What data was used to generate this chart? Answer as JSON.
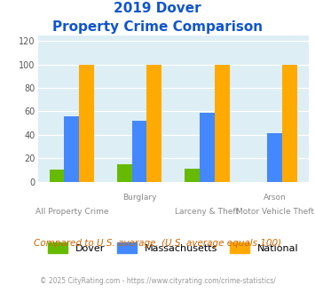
{
  "title_line1": "2019 Dover",
  "title_line2": "Property Crime Comparison",
  "category_labels_row1": [
    "",
    "Burglary",
    "",
    "Arson"
  ],
  "category_labels_row2": [
    "All Property Crime",
    "",
    "Larceny & Theft",
    "Motor Vehicle Theft"
  ],
  "groups": [
    "Dover",
    "Massachusetts",
    "National"
  ],
  "values": {
    "Dover": [
      10,
      15,
      11,
      0
    ],
    "Massachusetts": [
      56,
      52,
      59,
      41
    ],
    "National": [
      100,
      100,
      100,
      100
    ]
  },
  "colors": {
    "Dover": "#66bb00",
    "Massachusetts": "#4488ff",
    "National": "#ffaa00"
  },
  "title_color": "#1155cc",
  "bg_color": "#ddeef5",
  "ylabel_vals": [
    0,
    20,
    40,
    60,
    80,
    100,
    120
  ],
  "ylim": [
    0,
    125
  ],
  "footnote": "Compared to U.S. average. (U.S. average equals 100)",
  "copyright": "© 2025 CityRating.com - https://www.cityrating.com/crime-statistics/",
  "footnote_color": "#cc6600",
  "copyright_color": "#999999"
}
